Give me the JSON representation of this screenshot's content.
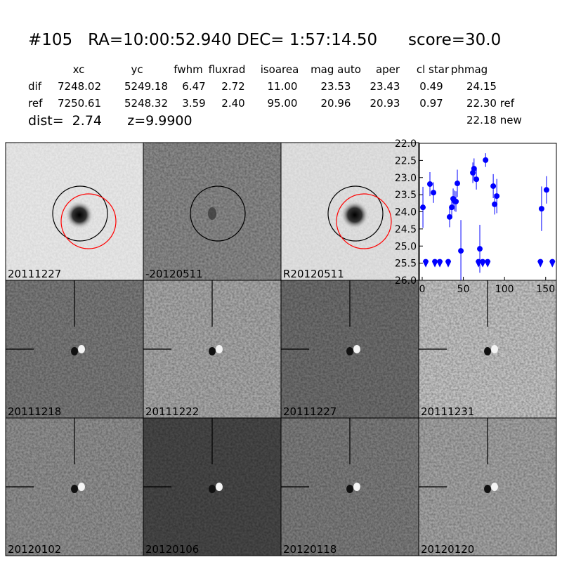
{
  "header": {
    "title": "#105   RA=10:00:52.940 DEC= 1:57:14.50      score=30.0"
  },
  "table": {
    "columns": [
      "xc",
      "yc",
      "fwhm",
      "fluxrad",
      "isoarea",
      "mag auto",
      "aper",
      "cl star",
      "phmag"
    ],
    "rows": [
      {
        "label": "dif",
        "cells": [
          "7248.02",
          "5249.18",
          "6.47",
          "2.72",
          "11.00",
          "23.53",
          "23.43",
          "0.49",
          "24.15"
        ]
      },
      {
        "label": "ref",
        "cells": [
          "7250.61",
          "5248.32",
          "3.59",
          "2.40",
          "95.00",
          "20.96",
          "20.93",
          "0.97",
          "22.30 ref"
        ]
      }
    ],
    "extra": "22.18 new"
  },
  "summary": "dist=  2.74      z=9.9900",
  "stamps": [
    {
      "label": "20111227"
    },
    {
      "label": "-20120511"
    },
    {
      "label": "R20120511"
    },
    {
      "label": "20111218"
    },
    {
      "label": "20111222"
    },
    {
      "label": "20111227",
      "color": "#ff0000"
    },
    {
      "label": "20111231"
    },
    {
      "label": "20120102"
    },
    {
      "label": "20120106"
    },
    {
      "label": "20120118"
    },
    {
      "label": "20120120"
    }
  ],
  "chart_data": {
    "type": "scatter",
    "xlim": [
      -3.4,
      163
    ],
    "ylim": [
      22,
      26
    ],
    "y_inverted": true,
    "xticks": [
      0,
      50,
      100,
      150
    ],
    "yticks": [
      {
        "value": 22,
        "label": "22.0"
      },
      {
        "value": 22.5,
        "label": "22.5"
      },
      {
        "value": 23,
        "label": "23.0"
      },
      {
        "value": 23.5,
        "label": "23.5"
      },
      {
        "value": 24,
        "label": "24.0"
      },
      {
        "value": 24.5,
        "label": "24.5"
      },
      {
        "value": 25,
        "label": "25.0"
      },
      {
        "value": 25.5,
        "label": "25.5"
      },
      {
        "value": 26,
        "label": "26.0"
      }
    ],
    "series": [
      {
        "kind": "detection",
        "color": "#0000ff",
        "x": [
          0.9,
          9.4,
          13.7,
          33.3,
          35.9,
          37.6,
          39.3,
          41,
          42.7,
          47,
          61.5,
          63,
          65.8,
          70,
          77,
          86.3,
          88,
          90.6,
          145,
          151
        ],
        "values": [
          23.87,
          23.19,
          23.44,
          24.15,
          23.87,
          23.62,
          23.68,
          23.7,
          23.17,
          25.14,
          22.86,
          22.74,
          23.05,
          25.08,
          22.49,
          23.25,
          23.78,
          23.54,
          23.91,
          23.36
        ],
        "errors": [
          0.6,
          0.35,
          0.3,
          0.3,
          0.3,
          0.3,
          0.3,
          0.3,
          0.4,
          0.9,
          0.3,
          0.3,
          0.3,
          0.7,
          0.2,
          0.35,
          0.3,
          0.5,
          0.65,
          0.4
        ]
      },
      {
        "kind": "limit",
        "color": "#0000ff",
        "x": [
          4.3,
          15.4,
          21.4,
          31.6,
          68.4,
          73.5,
          79.5,
          143.6,
          158.1
        ],
        "values": [
          25.5,
          25.5,
          25.5,
          25.5,
          25.5,
          25.5,
          25.5,
          25.5,
          25.5
        ]
      }
    ]
  }
}
